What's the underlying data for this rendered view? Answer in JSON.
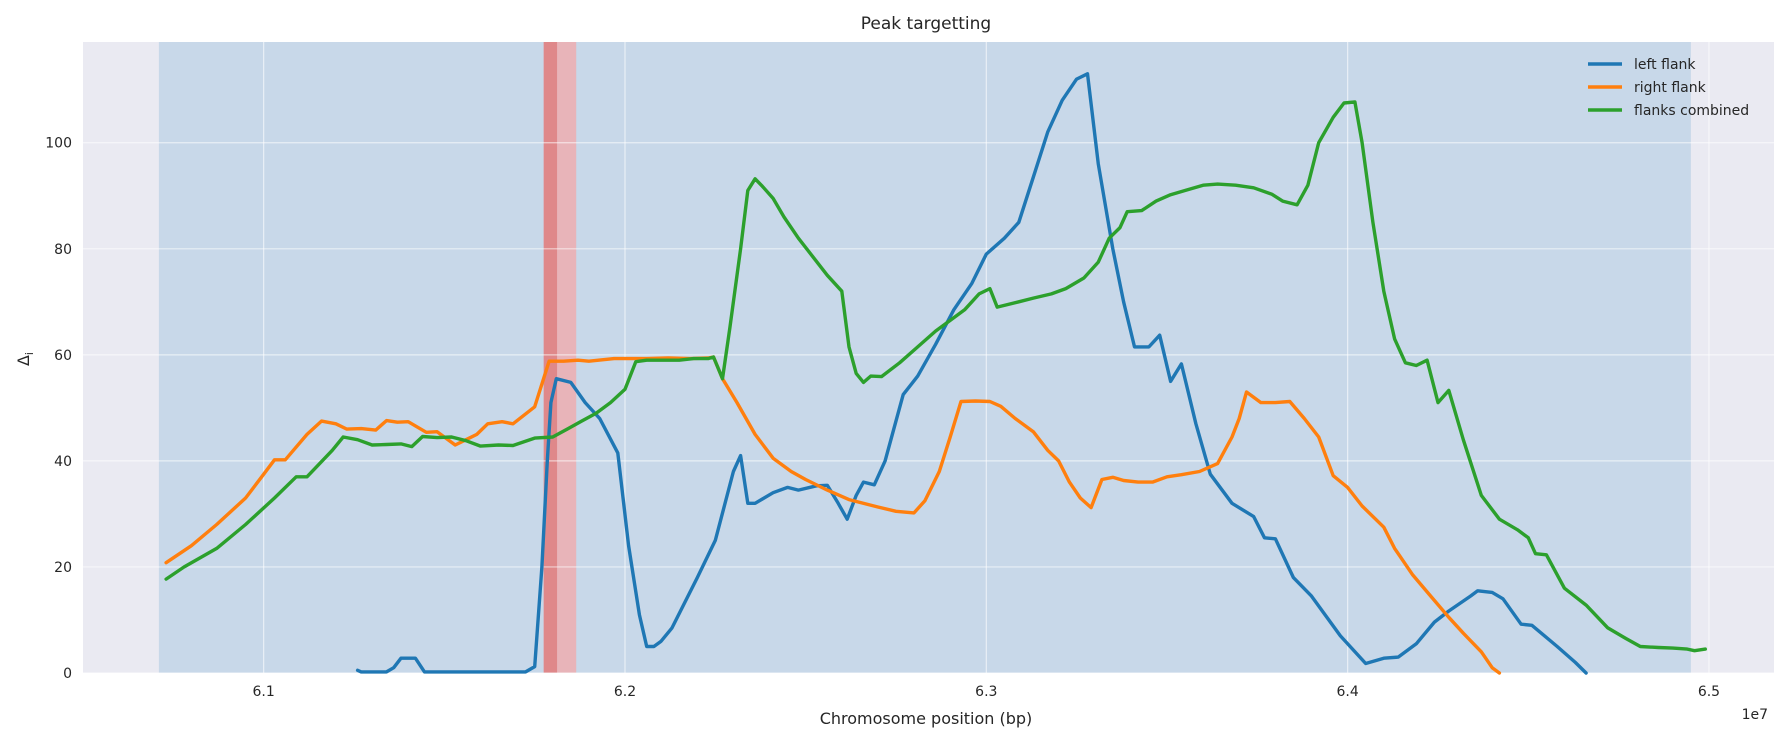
{
  "chart_data": {
    "type": "line",
    "title": "Peak targetting",
    "xlabel": "Chromosome position (bp)",
    "ylabel": "Δ",
    "ylabel_sub": "i",
    "x_offset_label": "1e7",
    "xlim": [
      6.05,
      6.518
    ],
    "ylim": [
      0,
      119
    ],
    "x_ticks": [
      {
        "v": 6.1,
        "label": "6.1"
      },
      {
        "v": 6.2,
        "label": "6.2"
      },
      {
        "v": 6.3,
        "label": "6.3"
      },
      {
        "v": 6.4,
        "label": "6.4"
      },
      {
        "v": 6.5,
        "label": "6.5"
      }
    ],
    "y_ticks": [
      {
        "v": 0,
        "label": "0"
      },
      {
        "v": 20,
        "label": "20"
      },
      {
        "v": 40,
        "label": "40"
      },
      {
        "v": 60,
        "label": "60"
      },
      {
        "v": 80,
        "label": "80"
      },
      {
        "v": 100,
        "label": "100"
      }
    ],
    "grid": true,
    "legend_position": "top-right",
    "shaded_regions": [
      {
        "x0": 6.071,
        "x1": 6.495,
        "color": "#b3cde3",
        "opacity": 0.62
      },
      {
        "x0": 6.1775,
        "x1": 6.1865,
        "color": "#f4a6a6",
        "opacity": 0.72
      },
      {
        "x0": 6.1775,
        "x1": 6.1812,
        "color": "#d86a6a",
        "opacity": 0.6
      }
    ],
    "series": [
      {
        "name": "left flank",
        "color": "#1f77b4",
        "points": [
          [
            6.126,
            0.5
          ],
          [
            6.127,
            0.2
          ],
          [
            6.134,
            0.2
          ],
          [
            6.136,
            1
          ],
          [
            6.138,
            2.8
          ],
          [
            6.142,
            2.8
          ],
          [
            6.1445,
            0.2
          ],
          [
            6.156,
            0.2
          ],
          [
            6.1725,
            0.2
          ],
          [
            6.175,
            1.2
          ],
          [
            6.177,
            20
          ],
          [
            6.1785,
            40
          ],
          [
            6.1795,
            51
          ],
          [
            6.181,
            55.5
          ],
          [
            6.185,
            54.8
          ],
          [
            6.189,
            51
          ],
          [
            6.193,
            48
          ],
          [
            6.198,
            41.5
          ],
          [
            6.201,
            24
          ],
          [
            6.204,
            11
          ],
          [
            6.206,
            5
          ],
          [
            6.208,
            5
          ],
          [
            6.21,
            6
          ],
          [
            6.213,
            8.5
          ],
          [
            6.22,
            18
          ],
          [
            6.225,
            25
          ],
          [
            6.23,
            38
          ],
          [
            6.232,
            41
          ],
          [
            6.234,
            32
          ],
          [
            6.236,
            32
          ],
          [
            6.241,
            34
          ],
          [
            6.245,
            35
          ],
          [
            6.248,
            34.5
          ],
          [
            6.253,
            35.3
          ],
          [
            6.256,
            35.4
          ],
          [
            6.259,
            32
          ],
          [
            6.2615,
            29
          ],
          [
            6.264,
            33.5
          ],
          [
            6.266,
            36
          ],
          [
            6.269,
            35.5
          ],
          [
            6.272,
            40
          ],
          [
            6.277,
            52.5
          ],
          [
            6.281,
            56
          ],
          [
            6.286,
            62
          ],
          [
            6.291,
            68.5
          ],
          [
            6.296,
            73.5
          ],
          [
            6.3,
            79
          ],
          [
            6.305,
            82
          ],
          [
            6.309,
            85
          ],
          [
            6.313,
            93.5
          ],
          [
            6.317,
            102
          ],
          [
            6.321,
            108
          ],
          [
            6.325,
            112
          ],
          [
            6.328,
            113
          ],
          [
            6.331,
            96
          ],
          [
            6.335,
            80
          ],
          [
            6.338,
            70
          ],
          [
            6.341,
            61.5
          ],
          [
            6.345,
            61.5
          ],
          [
            6.348,
            63.7
          ],
          [
            6.351,
            55
          ],
          [
            6.354,
            58.3
          ],
          [
            6.358,
            47
          ],
          [
            6.362,
            37.5
          ],
          [
            6.368,
            32
          ],
          [
            6.374,
            29.5
          ],
          [
            6.377,
            25.5
          ],
          [
            6.38,
            25.3
          ],
          [
            6.385,
            18
          ],
          [
            6.39,
            14.5
          ],
          [
            6.398,
            7
          ],
          [
            6.405,
            1.8
          ],
          [
            6.41,
            2.8
          ],
          [
            6.414,
            3
          ],
          [
            6.419,
            5.5
          ],
          [
            6.424,
            9.6
          ],
          [
            6.428,
            11.7
          ],
          [
            6.434,
            14.5
          ],
          [
            6.436,
            15.5
          ],
          [
            6.44,
            15.2
          ],
          [
            6.443,
            14
          ],
          [
            6.448,
            9.2
          ],
          [
            6.451,
            9
          ],
          [
            6.458,
            5
          ],
          [
            6.463,
            2
          ],
          [
            6.466,
            0
          ]
        ]
      },
      {
        "name": "right flank",
        "color": "#ff7f0e",
        "points": [
          [
            6.073,
            20.8
          ],
          [
            6.08,
            24
          ],
          [
            6.087,
            28
          ],
          [
            6.095,
            33
          ],
          [
            6.1,
            37.5
          ],
          [
            6.103,
            40.2
          ],
          [
            6.106,
            40.2
          ],
          [
            6.112,
            45
          ],
          [
            6.116,
            47.5
          ],
          [
            6.12,
            47
          ],
          [
            6.123,
            46
          ],
          [
            6.127,
            46.1
          ],
          [
            6.131,
            45.8
          ],
          [
            6.134,
            47.6
          ],
          [
            6.137,
            47.3
          ],
          [
            6.14,
            47.4
          ],
          [
            6.145,
            45.4
          ],
          [
            6.148,
            45.5
          ],
          [
            6.153,
            43
          ],
          [
            6.156,
            44
          ],
          [
            6.159,
            45
          ],
          [
            6.162,
            47
          ],
          [
            6.166,
            47.4
          ],
          [
            6.169,
            47
          ],
          [
            6.175,
            50.2
          ],
          [
            6.179,
            58.8
          ],
          [
            6.183,
            58.8
          ],
          [
            6.187,
            59
          ],
          [
            6.19,
            58.8
          ],
          [
            6.197,
            59.3
          ],
          [
            6.206,
            59.3
          ],
          [
            6.212,
            59.4
          ],
          [
            6.218,
            59.3
          ],
          [
            6.223,
            59.4
          ],
          [
            6.2245,
            59.6
          ],
          [
            6.227,
            55.5
          ],
          [
            6.231,
            51
          ],
          [
            6.236,
            45
          ],
          [
            6.241,
            40.5
          ],
          [
            6.246,
            38
          ],
          [
            6.25,
            36.5
          ],
          [
            6.256,
            34.5
          ],
          [
            6.262,
            32.7
          ],
          [
            6.27,
            31.3
          ],
          [
            6.275,
            30.5
          ],
          [
            6.28,
            30.2
          ],
          [
            6.283,
            32.5
          ],
          [
            6.287,
            38
          ],
          [
            6.29,
            44.5
          ],
          [
            6.293,
            51.2
          ],
          [
            6.297,
            51.3
          ],
          [
            6.301,
            51.2
          ],
          [
            6.304,
            50.3
          ],
          [
            6.308,
            48
          ],
          [
            6.313,
            45.5
          ],
          [
            6.317,
            42
          ],
          [
            6.32,
            40
          ],
          [
            6.323,
            36
          ],
          [
            6.326,
            33
          ],
          [
            6.329,
            31.2
          ],
          [
            6.332,
            36.5
          ],
          [
            6.335,
            36.9
          ],
          [
            6.338,
            36.3
          ],
          [
            6.342,
            36
          ],
          [
            6.346,
            36
          ],
          [
            6.35,
            37
          ],
          [
            6.354,
            37.4
          ],
          [
            6.359,
            38
          ],
          [
            6.364,
            39.5
          ],
          [
            6.368,
            44.5
          ],
          [
            6.37,
            48
          ],
          [
            6.372,
            53
          ],
          [
            6.376,
            51
          ],
          [
            6.38,
            51
          ],
          [
            6.384,
            51.2
          ],
          [
            6.388,
            48
          ],
          [
            6.392,
            44.5
          ],
          [
            6.396,
            37.2
          ],
          [
            6.4,
            35
          ],
          [
            6.404,
            31.5
          ],
          [
            6.41,
            27.5
          ],
          [
            6.413,
            23.5
          ],
          [
            6.418,
            18.5
          ],
          [
            6.423,
            14.5
          ],
          [
            6.428,
            10.5
          ],
          [
            6.432,
            7.5
          ],
          [
            6.437,
            4
          ],
          [
            6.44,
            1
          ],
          [
            6.442,
            0
          ]
        ]
      },
      {
        "name": "flanks combined",
        "color": "#2ca02c",
        "points": [
          [
            6.073,
            17.7
          ],
          [
            6.078,
            20
          ],
          [
            6.087,
            23.5
          ],
          [
            6.095,
            28
          ],
          [
            6.103,
            33
          ],
          [
            6.109,
            37
          ],
          [
            6.112,
            37
          ],
          [
            6.119,
            42
          ],
          [
            6.122,
            44.5
          ],
          [
            6.126,
            44
          ],
          [
            6.13,
            43
          ],
          [
            6.134,
            43.1
          ],
          [
            6.138,
            43.2
          ],
          [
            6.141,
            42.7
          ],
          [
            6.144,
            44.6
          ],
          [
            6.148,
            44.4
          ],
          [
            6.152,
            44.5
          ],
          [
            6.156,
            43.8
          ],
          [
            6.16,
            42.8
          ],
          [
            6.165,
            43
          ],
          [
            6.169,
            42.9
          ],
          [
            6.175,
            44.3
          ],
          [
            6.18,
            44.5
          ],
          [
            6.184,
            46
          ],
          [
            6.188,
            47.5
          ],
          [
            6.192,
            49
          ],
          [
            6.196,
            51
          ],
          [
            6.2,
            53.5
          ],
          [
            6.203,
            58.7
          ],
          [
            6.206,
            59
          ],
          [
            6.21,
            59
          ],
          [
            6.215,
            59
          ],
          [
            6.219,
            59.3
          ],
          [
            6.223,
            59.3
          ],
          [
            6.2245,
            59.6
          ],
          [
            6.227,
            55.5
          ],
          [
            6.229,
            65
          ],
          [
            6.232,
            80
          ],
          [
            6.234,
            91
          ],
          [
            6.236,
            93.2
          ],
          [
            6.238,
            91.8
          ],
          [
            6.241,
            89.5
          ],
          [
            6.244,
            86
          ],
          [
            6.248,
            82
          ],
          [
            6.252,
            78.5
          ],
          [
            6.256,
            75
          ],
          [
            6.26,
            72
          ],
          [
            6.262,
            61.5
          ],
          [
            6.264,
            56.5
          ],
          [
            6.266,
            54.8
          ],
          [
            6.268,
            56
          ],
          [
            6.271,
            55.9
          ],
          [
            6.276,
            58.5
          ],
          [
            6.281,
            61.5
          ],
          [
            6.286,
            64.5
          ],
          [
            6.29,
            66.5
          ],
          [
            6.294,
            68.5
          ],
          [
            6.298,
            71.5
          ],
          [
            6.301,
            72.5
          ],
          [
            6.303,
            69
          ],
          [
            6.309,
            70
          ],
          [
            6.313,
            70.7
          ],
          [
            6.318,
            71.5
          ],
          [
            6.322,
            72.5
          ],
          [
            6.327,
            74.5
          ],
          [
            6.331,
            77.5
          ],
          [
            6.334,
            82
          ],
          [
            6.337,
            84
          ],
          [
            6.339,
            87
          ],
          [
            6.343,
            87.2
          ],
          [
            6.347,
            89
          ],
          [
            6.351,
            90.2
          ],
          [
            6.355,
            91
          ],
          [
            6.36,
            92
          ],
          [
            6.364,
            92.2
          ],
          [
            6.369,
            92
          ],
          [
            6.374,
            91.5
          ],
          [
            6.379,
            90.3
          ],
          [
            6.382,
            89
          ],
          [
            6.386,
            88.3
          ],
          [
            6.389,
            92
          ],
          [
            6.392,
            100
          ],
          [
            6.396,
            104.8
          ],
          [
            6.399,
            107.5
          ],
          [
            6.402,
            107.7
          ],
          [
            6.404,
            100
          ],
          [
            6.407,
            85
          ],
          [
            6.41,
            72
          ],
          [
            6.413,
            63
          ],
          [
            6.416,
            58.5
          ],
          [
            6.419,
            58
          ],
          [
            6.422,
            59
          ],
          [
            6.425,
            51
          ],
          [
            6.428,
            53.3
          ],
          [
            6.432,
            44
          ],
          [
            6.437,
            33.5
          ],
          [
            6.442,
            29
          ],
          [
            6.447,
            27
          ],
          [
            6.45,
            25.5
          ],
          [
            6.452,
            22.5
          ],
          [
            6.455,
            22.3
          ],
          [
            6.46,
            16
          ],
          [
            6.466,
            12.8
          ],
          [
            6.472,
            8.5
          ],
          [
            6.477,
            6.5
          ],
          [
            6.481,
            5
          ],
          [
            6.486,
            4.8
          ],
          [
            6.49,
            4.7
          ],
          [
            6.494,
            4.5
          ],
          [
            6.496,
            4.2
          ],
          [
            6.499,
            4.5
          ]
        ]
      }
    ]
  }
}
